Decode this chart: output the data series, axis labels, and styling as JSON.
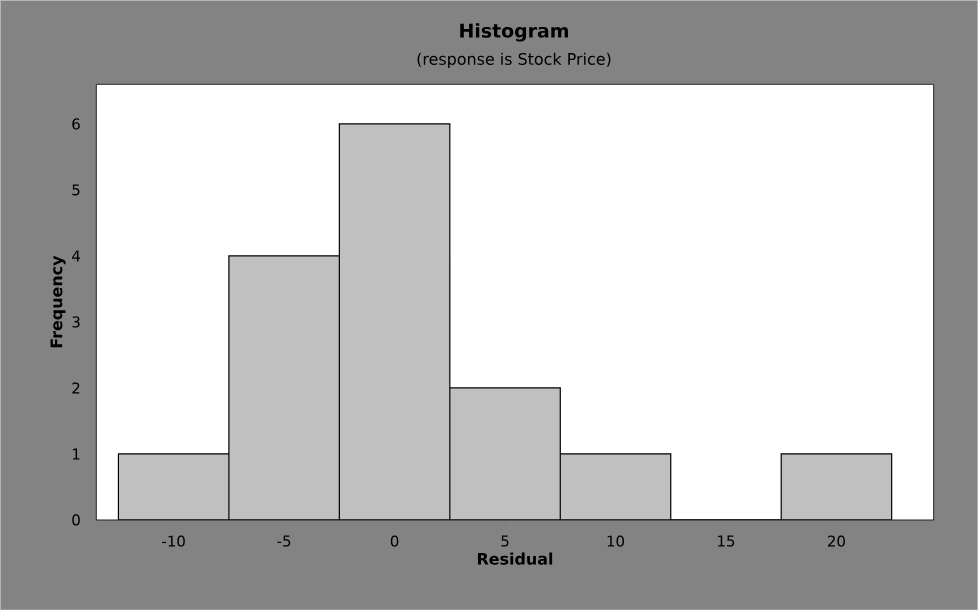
{
  "chart_data": {
    "type": "histogram",
    "title": "Histogram",
    "subtitle": "(response is Stock Price)",
    "xlabel": "Residual",
    "ylabel": "Frequency",
    "bins": [
      -12.5,
      -7.5,
      -2.5,
      2.5,
      7.5,
      12.5,
      17.5,
      22.5
    ],
    "values": [
      1,
      4,
      6,
      2,
      1,
      0,
      1
    ],
    "color": "#c0c0c0",
    "xlim": [
      -13.5,
      24.4
    ],
    "ylim": [
      0,
      6.6
    ],
    "xticks": [
      -10,
      -5,
      0,
      5,
      10,
      15,
      20
    ],
    "yticks": [
      0,
      1,
      2,
      3,
      4,
      5,
      6
    ]
  }
}
